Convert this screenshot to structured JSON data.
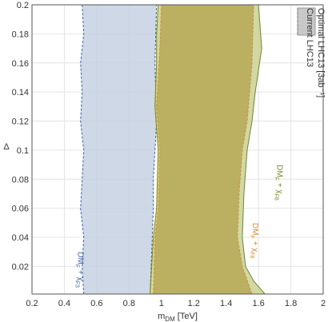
{
  "chart_data": {
    "type": "region",
    "x_label": {
      "main": "m",
      "sub": "DM",
      "rest": " [TeV]"
    },
    "y_label": "Δ",
    "xlim": [
      0.2,
      2.0
    ],
    "ylim": [
      0.001,
      0.2
    ],
    "xticks": [
      0.2,
      0.4,
      0.6,
      0.8,
      1.0,
      1.2,
      1.4,
      1.6,
      1.8,
      2.0
    ],
    "yticks": [
      0.02,
      0.04,
      0.06,
      0.08,
      0.1,
      0.12,
      0.14,
      0.16,
      0.18,
      0.2
    ],
    "grid": true,
    "series": [
      {
        "name": "DMF + χF3 (optimal)",
        "color": "#c3d0e0",
        "stroke": "#3d64a0",
        "x": [
          0.52,
          0.51,
          0.52,
          0.5,
          0.51,
          0.52,
          0.5,
          0.51,
          0.5,
          0.52,
          0.51,
          0.97,
          0.96,
          0.97,
          0.96,
          0.95,
          0.95,
          0.94,
          0.93
        ],
        "y": [
          0.001,
          0.02,
          0.04,
          0.06,
          0.08,
          0.1,
          0.12,
          0.14,
          0.16,
          0.18,
          0.2,
          0.2,
          0.16,
          0.12,
          0.1,
          0.08,
          0.06,
          0.03,
          0.001
        ]
      },
      {
        "name": "DMF + χF8 (optimal)",
        "color": "#c9d08e",
        "stroke": "#6f8a1e",
        "x": [
          0.93,
          0.95,
          0.97,
          0.98,
          0.96,
          0.97,
          0.97,
          0.98,
          1.6,
          1.62,
          1.58,
          1.56,
          1.53,
          1.51,
          1.5,
          1.52,
          1.57,
          1.64
        ],
        "y": [
          0.001,
          0.04,
          0.06,
          0.1,
          0.13,
          0.16,
          0.18,
          0.2,
          0.2,
          0.17,
          0.14,
          0.12,
          0.1,
          0.07,
          0.04,
          0.02,
          0.01,
          0.001
        ]
      },
      {
        "name": "DMF + χF8 (current)",
        "color": "#b6a753",
        "stroke": "#d88a35",
        "x": [
          0.95,
          0.96,
          0.98,
          0.99,
          0.97,
          0.99,
          1.0,
          1.57,
          1.56,
          1.53,
          1.5,
          1.48,
          1.47,
          1.5,
          1.56
        ],
        "y": [
          0.001,
          0.04,
          0.06,
          0.1,
          0.13,
          0.17,
          0.2,
          0.2,
          0.16,
          0.12,
          0.1,
          0.07,
          0.04,
          0.02,
          0.001
        ]
      }
    ],
    "annotations": [
      {
        "parts": [
          "DM",
          "F",
          " + χ",
          "F3"
        ],
        "color": "#3d64a0",
        "x": 0.47,
        "y": 0.03
      },
      {
        "parts": [
          "DM",
          "F",
          " + χ",
          "F8"
        ],
        "color": "#d88a35",
        "x": 1.55,
        "y": 0.05
      },
      {
        "parts": [
          "DM",
          "F",
          " + χ",
          "F8"
        ],
        "color": "#6f8a1e",
        "x": 1.7,
        "y": 0.09
      }
    ],
    "legend": [
      "Optimal LHC13 [3ab⁻¹]",
      "Current LHC13"
    ]
  }
}
